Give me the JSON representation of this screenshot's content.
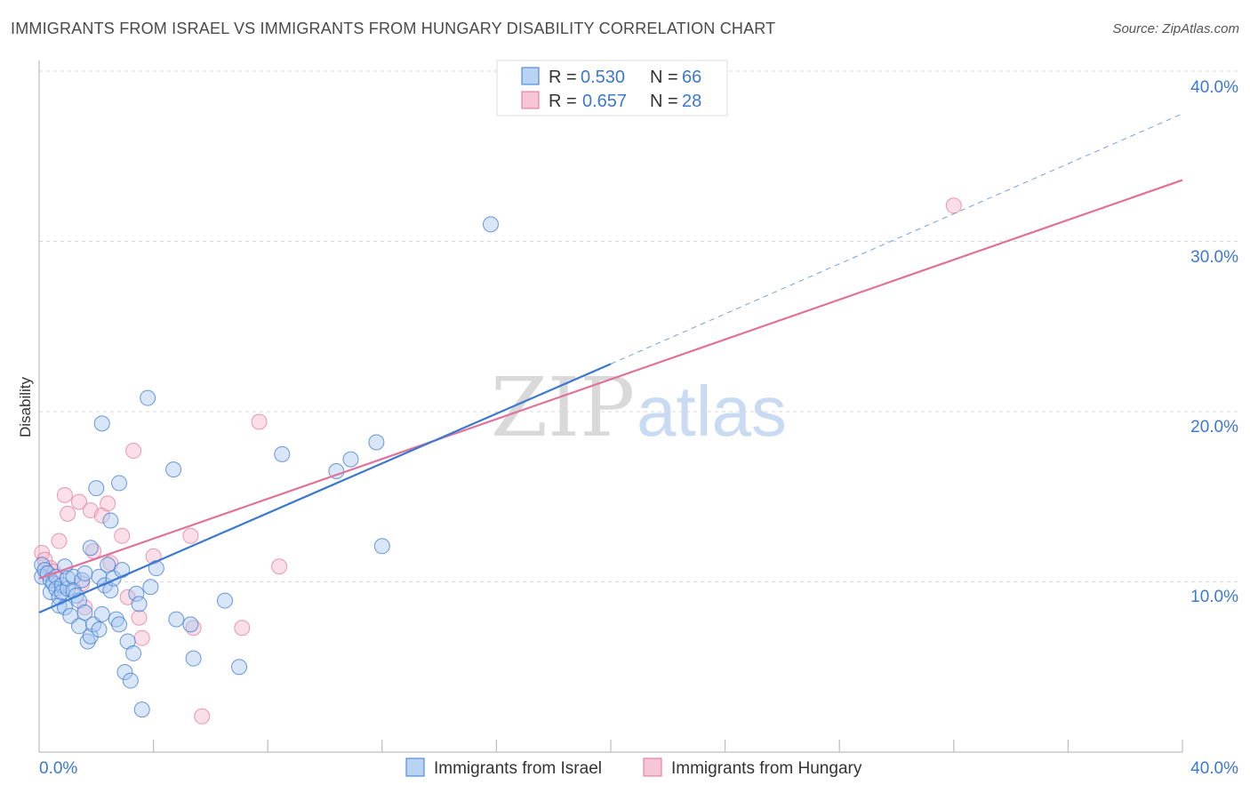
{
  "header": {
    "title": "IMMIGRANTS FROM ISRAEL VS IMMIGRANTS FROM HUNGARY DISABILITY CORRELATION CHART",
    "source": "Source: ZipAtlas.com"
  },
  "watermark": {
    "zip": "ZIP",
    "atlas": "atlas"
  },
  "colors": {
    "israel": "#3b78d0",
    "israel_fill": "#a8c8f0",
    "hungary": "#e07098",
    "hungary_fill": "#f5b8cc",
    "tick_text": "#3b78d0",
    "grid": "#d8d8d8"
  },
  "legend": {
    "israel": {
      "r_label": "R = ",
      "r_value": "0.530",
      "n_label": "N = ",
      "n_value": "66"
    },
    "hungary": {
      "r_label": "R = ",
      "r_value": "0.657",
      "n_label": "N = ",
      "n_value": "28"
    }
  },
  "bottom_legend": {
    "israel": "Immigrants from Israel",
    "hungary": "Immigrants from Hungary"
  },
  "chart_data": {
    "type": "scatter",
    "title": "IMMIGRANTS FROM ISRAEL VS IMMIGRANTS FROM HUNGARY DISABILITY CORRELATION CHART",
    "xlabel": "",
    "ylabel": "Disability",
    "xlim": [
      0,
      40
    ],
    "ylim": [
      0,
      40
    ],
    "x_tick_labels": [
      "0.0%",
      "40.0%"
    ],
    "y_ticks": [
      10,
      20,
      30,
      40
    ],
    "y_tick_labels": [
      "10.0%",
      "20.0%",
      "30.0%",
      "40.0%"
    ],
    "grid": true,
    "legend_position": "top-center",
    "series": [
      {
        "name": "Immigrants from Israel",
        "R": 0.53,
        "N": 66,
        "trend": {
          "x0": 0,
          "y0": 8.2,
          "x1": 20,
          "y1": 22.8,
          "dashed_to_x": 40,
          "dashed_to_y": 37.5
        },
        "points": [
          [
            0.1,
            11.0
          ],
          [
            0.1,
            10.3
          ],
          [
            0.2,
            10.7
          ],
          [
            0.3,
            10.5
          ],
          [
            0.4,
            9.4
          ],
          [
            0.4,
            10.1
          ],
          [
            0.5,
            9.9
          ],
          [
            0.6,
            10.3
          ],
          [
            0.6,
            9.6
          ],
          [
            0.7,
            9.1
          ],
          [
            0.7,
            8.6
          ],
          [
            0.8,
            9.8
          ],
          [
            0.8,
            9.4
          ],
          [
            0.9,
            10.9
          ],
          [
            0.9,
            8.5
          ],
          [
            1.0,
            9.6
          ],
          [
            1.0,
            10.2
          ],
          [
            1.1,
            8.0
          ],
          [
            1.2,
            10.3
          ],
          [
            1.2,
            9.5
          ],
          [
            1.3,
            9.2
          ],
          [
            1.4,
            7.4
          ],
          [
            1.4,
            8.9
          ],
          [
            1.5,
            10.1
          ],
          [
            1.6,
            8.2
          ],
          [
            1.6,
            10.5
          ],
          [
            1.7,
            6.5
          ],
          [
            1.8,
            6.8
          ],
          [
            1.8,
            12.0
          ],
          [
            1.9,
            7.5
          ],
          [
            2.0,
            15.5
          ],
          [
            2.1,
            7.2
          ],
          [
            2.1,
            10.3
          ],
          [
            2.2,
            8.1
          ],
          [
            2.2,
            19.3
          ],
          [
            2.3,
            9.8
          ],
          [
            2.4,
            11.0
          ],
          [
            2.5,
            13.6
          ],
          [
            2.5,
            9.5
          ],
          [
            2.6,
            10.2
          ],
          [
            2.7,
            7.8
          ],
          [
            2.8,
            7.5
          ],
          [
            2.8,
            15.8
          ],
          [
            2.9,
            10.7
          ],
          [
            3.0,
            4.7
          ],
          [
            3.1,
            6.5
          ],
          [
            3.2,
            4.2
          ],
          [
            3.3,
            5.8
          ],
          [
            3.4,
            9.3
          ],
          [
            3.5,
            8.7
          ],
          [
            3.6,
            2.5
          ],
          [
            3.8,
            20.8
          ],
          [
            3.9,
            9.7
          ],
          [
            4.1,
            10.8
          ],
          [
            4.7,
            16.6
          ],
          [
            4.8,
            7.8
          ],
          [
            5.3,
            7.5
          ],
          [
            5.4,
            5.5
          ],
          [
            6.5,
            8.9
          ],
          [
            7.0,
            5.0
          ],
          [
            8.5,
            17.5
          ],
          [
            10.4,
            16.5
          ],
          [
            10.9,
            17.2
          ],
          [
            11.8,
            18.2
          ],
          [
            12.0,
            12.1
          ],
          [
            15.8,
            31.0
          ]
        ]
      },
      {
        "name": "Immigrants from Hungary",
        "R": 0.657,
        "N": 28,
        "trend": {
          "x0": 0,
          "y0": 10.2,
          "x1": 40,
          "y1": 33.6
        },
        "points": [
          [
            0.1,
            11.7
          ],
          [
            0.2,
            11.3
          ],
          [
            0.4,
            10.8
          ],
          [
            0.5,
            10.6
          ],
          [
            0.7,
            12.4
          ],
          [
            0.9,
            15.1
          ],
          [
            1.0,
            14.0
          ],
          [
            1.4,
            14.7
          ],
          [
            1.5,
            9.9
          ],
          [
            1.6,
            8.5
          ],
          [
            1.8,
            14.2
          ],
          [
            1.9,
            11.8
          ],
          [
            2.2,
            13.9
          ],
          [
            2.4,
            14.6
          ],
          [
            2.5,
            11.1
          ],
          [
            2.9,
            12.7
          ],
          [
            3.1,
            9.1
          ],
          [
            3.3,
            17.7
          ],
          [
            3.5,
            7.9
          ],
          [
            3.6,
            6.7
          ],
          [
            4.0,
            11.5
          ],
          [
            5.3,
            12.7
          ],
          [
            5.4,
            7.3
          ],
          [
            5.7,
            2.1
          ],
          [
            7.1,
            7.3
          ],
          [
            7.7,
            19.4
          ],
          [
            8.4,
            10.9
          ],
          [
            32.0,
            32.1
          ]
        ]
      }
    ]
  }
}
